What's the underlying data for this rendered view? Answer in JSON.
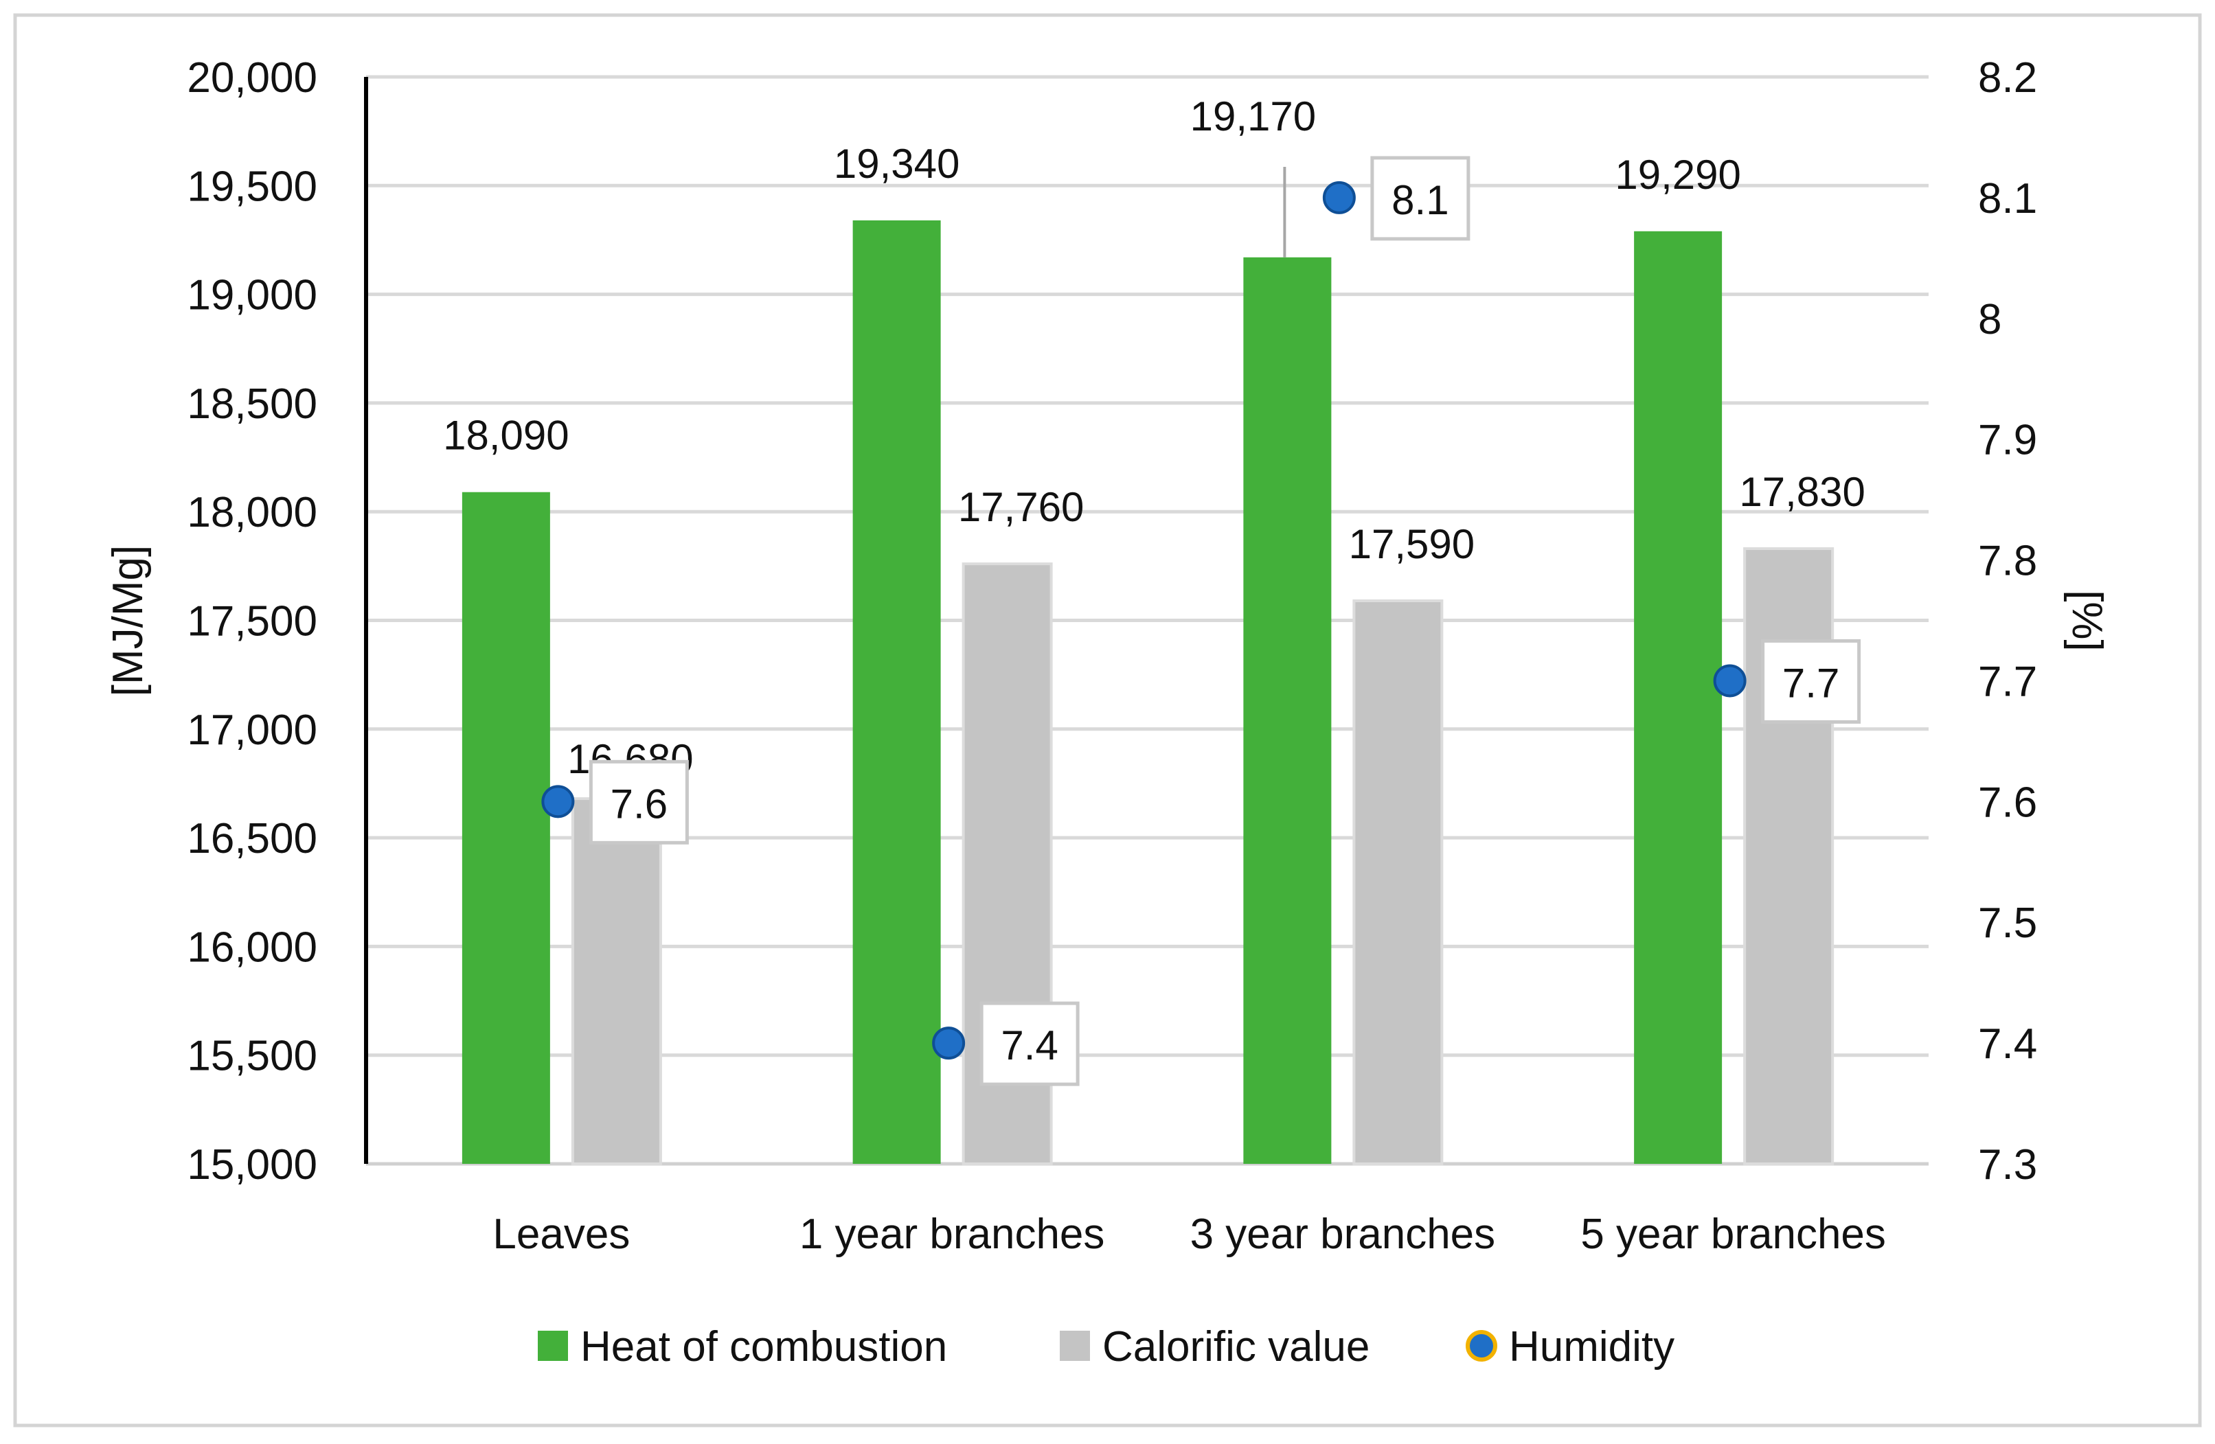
{
  "chart_data": {
    "type": "bar",
    "title": "",
    "categories": [
      "Leaves",
      "1 year branches",
      "3 year branches",
      "5 year branches"
    ],
    "series": [
      {
        "name": "Heat of combustion",
        "type": "bar",
        "axis": "left",
        "color": "#43b03a",
        "values": [
          18090,
          19340,
          19170,
          19290
        ],
        "labels": [
          "18,090",
          "19,340",
          "19,170",
          "19,290"
        ]
      },
      {
        "name": "Calorific value",
        "type": "bar",
        "axis": "left",
        "color": "#c4c4c4",
        "values": [
          16680,
          17760,
          17590,
          17830
        ],
        "labels": [
          "16,680",
          "17,760",
          "17,590",
          "17,830"
        ]
      },
      {
        "name": "Humidity",
        "type": "scatter",
        "axis": "right",
        "color": "#1f6fc7",
        "edge_color": "#f2b200",
        "values": [
          7.6,
          7.4,
          8.1,
          7.7
        ],
        "labels": [
          "7.6",
          "7.4",
          "8.1",
          "7.7"
        ]
      }
    ],
    "y_left": {
      "label": "[MJ/Mg]",
      "min": 15000,
      "max": 20000,
      "ticks": [
        {
          "value": 15000,
          "label": "15,000"
        },
        {
          "value": 15500,
          "label": "15,500"
        },
        {
          "value": 16000,
          "label": "16,000"
        },
        {
          "value": 16500,
          "label": "16,500"
        },
        {
          "value": 17000,
          "label": "17,000"
        },
        {
          "value": 17500,
          "label": "17,500"
        },
        {
          "value": 18000,
          "label": "18,000"
        },
        {
          "value": 18500,
          "label": "18,500"
        },
        {
          "value": 19000,
          "label": "19,000"
        },
        {
          "value": 19500,
          "label": "19,500"
        },
        {
          "value": 20000,
          "label": "20,000"
        }
      ]
    },
    "y_right": {
      "label": "[%]",
      "min": 7.3,
      "max": 8.2,
      "ticks": [
        {
          "value": 7.3,
          "label": "7.3"
        },
        {
          "value": 7.4,
          "label": "7.4"
        },
        {
          "value": 7.5,
          "label": "7.5"
        },
        {
          "value": 7.6,
          "label": "7.6"
        },
        {
          "value": 7.7,
          "label": "7.7"
        },
        {
          "value": 7.8,
          "label": "7.8"
        },
        {
          "value": 7.9,
          "label": "7.9"
        },
        {
          "value": 8.0,
          "label": "8"
        },
        {
          "value": 8.1,
          "label": "8.1"
        },
        {
          "value": 8.2,
          "label": "8.2"
        }
      ]
    },
    "grid": true,
    "legend": "bottom"
  }
}
